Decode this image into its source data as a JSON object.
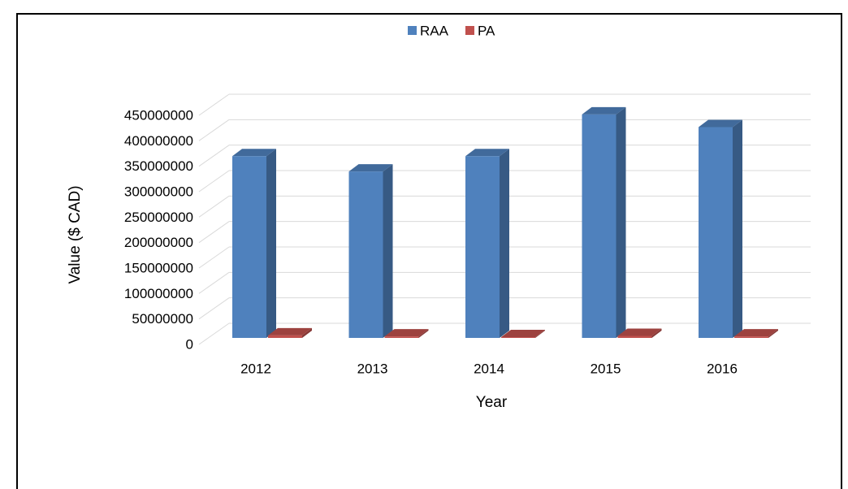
{
  "chart_data": {
    "type": "bar3d",
    "x_label": "Year",
    "y_label": "Value ($ CAD)",
    "categories": [
      "2012",
      "2013",
      "2014",
      "2015",
      "2016"
    ],
    "series": [
      {
        "name": "RAA",
        "color": "#4f81bd",
        "values": [
          357000000,
          327000000,
          357000000,
          439000000,
          414000000
        ]
      },
      {
        "name": "PA",
        "color": "#c0504d",
        "values": [
          5000000,
          3000000,
          1500000,
          4000000,
          3000000
        ]
      }
    ],
    "ylim": [
      0,
      450000000
    ],
    "yticks": [
      0,
      50000000,
      100000000,
      150000000,
      200000000,
      250000000,
      300000000,
      350000000,
      400000000,
      450000000
    ],
    "grid": true,
    "legend": "top"
  }
}
